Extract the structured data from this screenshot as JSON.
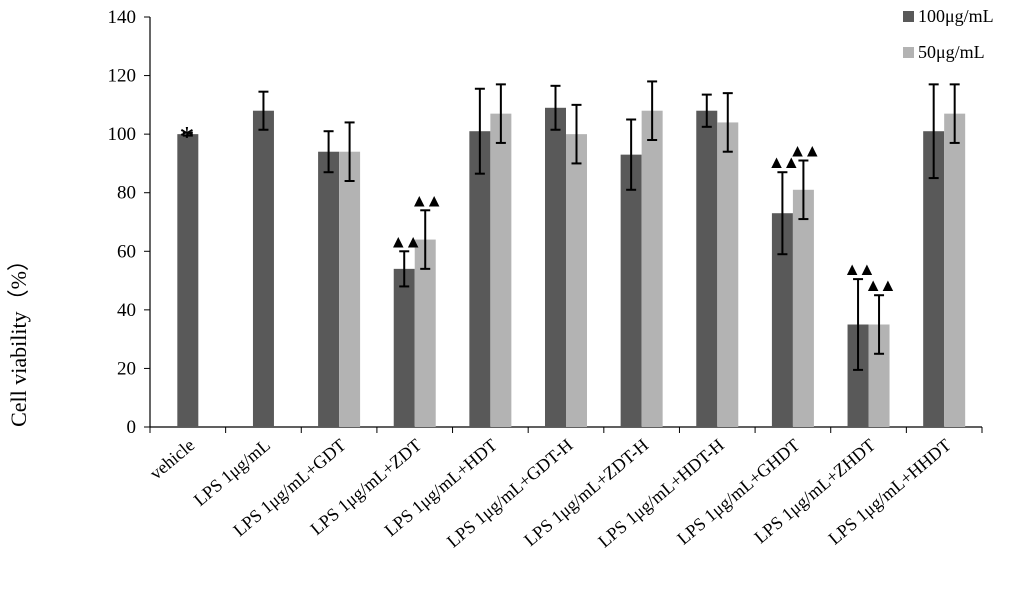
{
  "chart_data": {
    "type": "bar",
    "title": "",
    "xlabel": "",
    "ylabel": "Cell viability（%）",
    "ylim": [
      0,
      140
    ],
    "yticks": [
      0,
      20,
      40,
      60,
      80,
      100,
      120,
      140
    ],
    "grid": false,
    "legend_position": "top-right",
    "categories": [
      "vehicle",
      "LPS 1μg/mL",
      "LPS 1μg/mL+GDT",
      "LPS 1μg/mL+ZDT",
      "LPS 1μg/mL+HDT",
      "LPS 1μg/mL+GDT-H",
      "LPS 1μg/mL+ZDT-H",
      "LPS 1μg/mL+HDT-H",
      "LPS 1μg/mL+GHDT",
      "LPS 1μg/mL+ZHDT",
      "LPS 1μg/mL+HHDT"
    ],
    "series": [
      {
        "name": "100μg/mL",
        "color": "#595959",
        "values": [
          100,
          108,
          94,
          54,
          101,
          109,
          93,
          108,
          73,
          35,
          101
        ],
        "errors": [
          0.5,
          6.5,
          7,
          6,
          14.5,
          7.5,
          12,
          5.5,
          14,
          15.5,
          16
        ]
      },
      {
        "name": "50μg/mL",
        "color": "#b3b3b3",
        "values": [
          null,
          null,
          94,
          64,
          107,
          100,
          108,
          null,
          81,
          35,
          107
        ],
        "errors": [
          null,
          null,
          10,
          10,
          10,
          10,
          10,
          null,
          10,
          10,
          10
        ]
      }
    ],
    "series_overrides": {
      "LPS 1μg/mL+HDT-H": {
        "50μg/mL": 104,
        "50μg/mL_error": 10
      }
    },
    "annotations": [
      {
        "category": "vehicle",
        "series": "100μg/mL",
        "symbol": "*",
        "color": "#8a6d1a"
      },
      {
        "category": "LPS 1μg/mL+ZDT",
        "series": "100μg/mL",
        "symbol": "▲▲",
        "color": "#000000"
      },
      {
        "category": "LPS 1μg/mL+ZDT",
        "series": "50μg/mL",
        "symbol": "▲▲",
        "color": "#000000"
      },
      {
        "category": "LPS 1μg/mL+GHDT",
        "series": "100μg/mL",
        "symbol": "▲▲",
        "color": "#000000"
      },
      {
        "category": "LPS 1μg/mL+GHDT",
        "series": "50μg/mL",
        "symbol": "▲▲",
        "color": "#000000"
      },
      {
        "category": "LPS 1μg/mL+ZHDT",
        "series": "100μg/mL",
        "symbol": "▲▲",
        "color": "#000000"
      },
      {
        "category": "LPS 1μg/mL+ZHDT",
        "series": "50μg/mL",
        "symbol": "▲▲",
        "color": "#000000"
      }
    ]
  }
}
